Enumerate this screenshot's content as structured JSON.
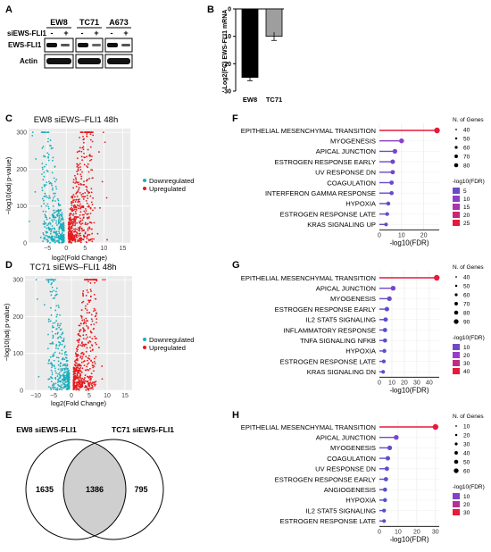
{
  "panel_labels": [
    "A",
    "B",
    "C",
    "D",
    "E",
    "F",
    "G",
    "H"
  ],
  "blot": {
    "cell_lines": [
      "EW8",
      "TC71",
      "A673"
    ],
    "treatment_label": "siEWS-FLI1",
    "lane_marks": [
      "-",
      "+"
    ],
    "rows": [
      "EWS-FLI1",
      "Actin"
    ]
  },
  "bar": {
    "ylabel": "Log2(FC) EWS-FLI1 mRNA",
    "yticks": [
      "0",
      "-10",
      "-20",
      "-30"
    ]
  },
  "volcano_c": {
    "title": "EW8 siEWS–FLI1 48h",
    "ylabel": "−log10(adj p-value)",
    "xlabel": "log2(Fold Change)",
    "xticks": [
      "−5",
      "0",
      "5",
      "10",
      "15"
    ],
    "yticks": [
      "0",
      "100",
      "200",
      "300"
    ],
    "legend": [
      "Downregulated",
      "Upregulated"
    ]
  },
  "volcano_d": {
    "title": "TC71 siEWS–FLI1 48h",
    "ylabel": "−log10(adj p-value)",
    "xlabel": "log2(Fold Change)",
    "xticks": [
      "−10",
      "−5",
      "0",
      "5",
      "10",
      "15"
    ],
    "yticks": [
      "0",
      "100",
      "200",
      "300"
    ],
    "legend": [
      "Downregulated",
      "Upregulated"
    ]
  },
  "venn": {
    "left_title": "EW8 siEWS-FLI1",
    "right_title": "TC71 siEWS-FLI1",
    "left_only": "1635",
    "overlap": "1386",
    "right_only": "795"
  },
  "chart_data": [
    {
      "type": "bar",
      "categories": [
        "EW8",
        "TC71"
      ],
      "values": [
        -25,
        -10
      ],
      "errors": [
        1.2,
        1.5
      ],
      "ylabel": "Log2(FC) EWS-FLI1 mRNA",
      "ylim": [
        -30,
        0
      ],
      "colors": [
        "#000000",
        "#9e9e9e"
      ]
    },
    {
      "type": "scatter",
      "title": "EW8 siEWS–FLI1 48h",
      "xlabel": "log2(Fold Change)",
      "ylabel": "−log10(adj p-value)",
      "xlim": [
        -10,
        17
      ],
      "ylim": [
        0,
        310
      ],
      "series": [
        {
          "name": "Downregulated",
          "color": "#1aaebc"
        },
        {
          "name": "Upregulated",
          "color": "#e8191d"
        }
      ]
    },
    {
      "type": "scatter",
      "title": "TC71 siEWS–FLI1 48h",
      "xlabel": "log2(Fold Change)",
      "ylabel": "−log10(adj p-value)",
      "xlim": [
        -13,
        17
      ],
      "ylim": [
        0,
        310
      ],
      "series": [
        {
          "name": "Downregulated",
          "color": "#1aaebc"
        },
        {
          "name": "Upregulated",
          "color": "#e8191d"
        }
      ]
    },
    {
      "type": "lollipop",
      "xlabel": "-log10(FDR)",
      "xticks": [
        0,
        10,
        20
      ],
      "xlim": [
        0,
        27
      ],
      "terms": [
        "EPITHELIAL MESENCHYMAL TRANSITION",
        "MYOGENESIS",
        "APICAL JUNCTION",
        "ESTROGEN RESPONSE EARLY",
        "UV RESPONSE DN",
        "COAGULATION",
        "INTERFERON GAMMA RESPONSE",
        "HYPOXIA",
        "ESTROGEN RESPONSE LATE",
        "KRAS SIGNALING UP"
      ],
      "values": [
        26,
        10,
        7,
        6,
        6,
        5.5,
        5.5,
        4,
        3.5,
        3
      ],
      "size_legend_title": "N. of Genes",
      "size_legend": [
        40,
        50,
        60,
        70,
        80
      ],
      "color_legend_title": "-log10(FDR)",
      "color_legend": [
        5,
        10,
        15,
        20,
        25
      ]
    },
    {
      "type": "lollipop",
      "xlabel": "-log10(FDR)",
      "xticks": [
        0,
        10,
        20,
        30,
        40
      ],
      "xlim": [
        0,
        48
      ],
      "terms": [
        "EPITHELIAL MESENCHYMAL TRANSITION",
        "APICAL JUNCTION",
        "MYOGENESIS",
        "ESTROGEN RESPONSE EARLY",
        "IL2 STAT5 SIGNALING",
        "INFLAMMATORY RESPONSE",
        "TNFA SIGNALING NFKB",
        "HYPOXIA",
        "ESTROGEN RESPONSE LATE",
        "KRAS SIGNALING DN"
      ],
      "values": [
        46,
        11,
        8,
        6,
        5,
        4.5,
        4.5,
        4,
        3.5,
        3
      ],
      "size_legend_title": "N. of Genes",
      "size_legend": [
        40,
        50,
        60,
        70,
        80,
        90
      ],
      "color_legend_title": "-log10(FDR)",
      "color_legend": [
        10,
        20,
        30,
        40
      ]
    },
    {
      "type": "lollipop",
      "xlabel": "-log10(FDR)",
      "xticks": [
        0,
        10,
        20,
        30
      ],
      "xlim": [
        0,
        32
      ],
      "terms": [
        "EPITHELIAL MESENCHYMAL TRANSITION",
        "APICAL JUNCTION",
        "MYOGENESIS",
        "COAGULATION",
        "UV RESPONSE DN",
        "ESTROGEN RESPONSE EARLY",
        "ANGIOGENESIS",
        "HYPOXIA",
        "IL2 STAT5 SIGNALING",
        "ESTROGEN RESPONSE LATE"
      ],
      "values": [
        30,
        9,
        5.5,
        4.5,
        4,
        3.5,
        3,
        3,
        2.5,
        2.5
      ],
      "size_legend_title": "N. of Genes",
      "size_legend": [
        10,
        20,
        30,
        40,
        50,
        60
      ],
      "color_legend_title": "-log10(FDR)",
      "color_legend": [
        10,
        20,
        30
      ]
    }
  ]
}
